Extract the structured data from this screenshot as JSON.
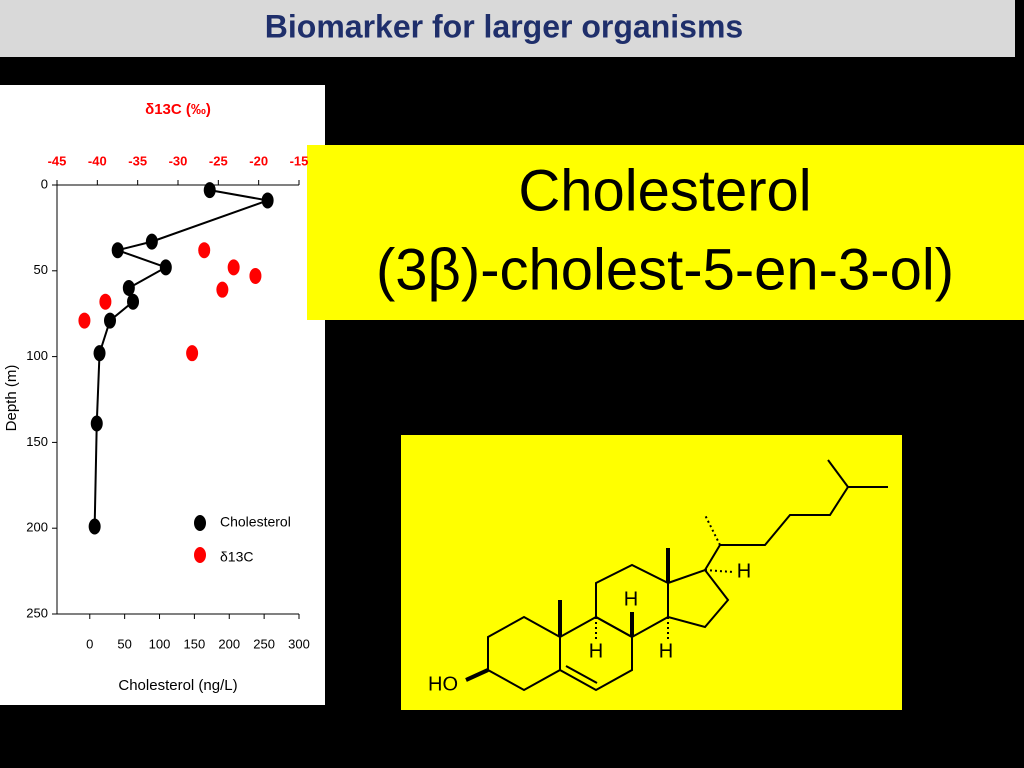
{
  "header": {
    "title": "Biomarker for larger organisms"
  },
  "callout": {
    "lines": [
      "Cholesterol",
      "(3β)-cholest-5-en-3-ol)"
    ]
  },
  "structure": {
    "labels": [
      "H",
      "H",
      "H",
      "H",
      "HO"
    ]
  },
  "chart_data": {
    "type": "scatter",
    "y_label": "Depth (m)",
    "x_label": "Cholesterol (ng/L)",
    "x2_label": "δ13C (‰)",
    "ylim": [
      0,
      250
    ],
    "yticks": [
      0,
      50,
      100,
      150,
      200,
      250
    ],
    "y_inverted": true,
    "xlim": [
      -47,
      300
    ],
    "xticks": [
      0,
      50,
      100,
      150,
      200,
      250,
      300
    ],
    "x2lim": [
      -45,
      -15
    ],
    "x2ticks": [
      -45,
      -40,
      -35,
      -30,
      -25,
      -20,
      -15
    ],
    "series": [
      {
        "name": "Cholesterol",
        "color": "#000000",
        "line": true,
        "x": [
          172,
          255,
          89,
          40,
          109,
          56,
          62,
          29,
          14,
          10,
          7
        ],
        "values": [
          3,
          9,
          33,
          38,
          48,
          60,
          68,
          79,
          98,
          139,
          199
        ]
      },
      {
        "name": "δ13C",
        "color": "#ff0000",
        "line": false,
        "axis": "x2",
        "x": [
          -26.75,
          -23.1,
          -20.4,
          -24.5,
          -39,
          -41.6,
          -28.25
        ],
        "values": [
          38,
          48,
          53,
          61,
          68,
          79,
          98
        ]
      }
    ]
  }
}
